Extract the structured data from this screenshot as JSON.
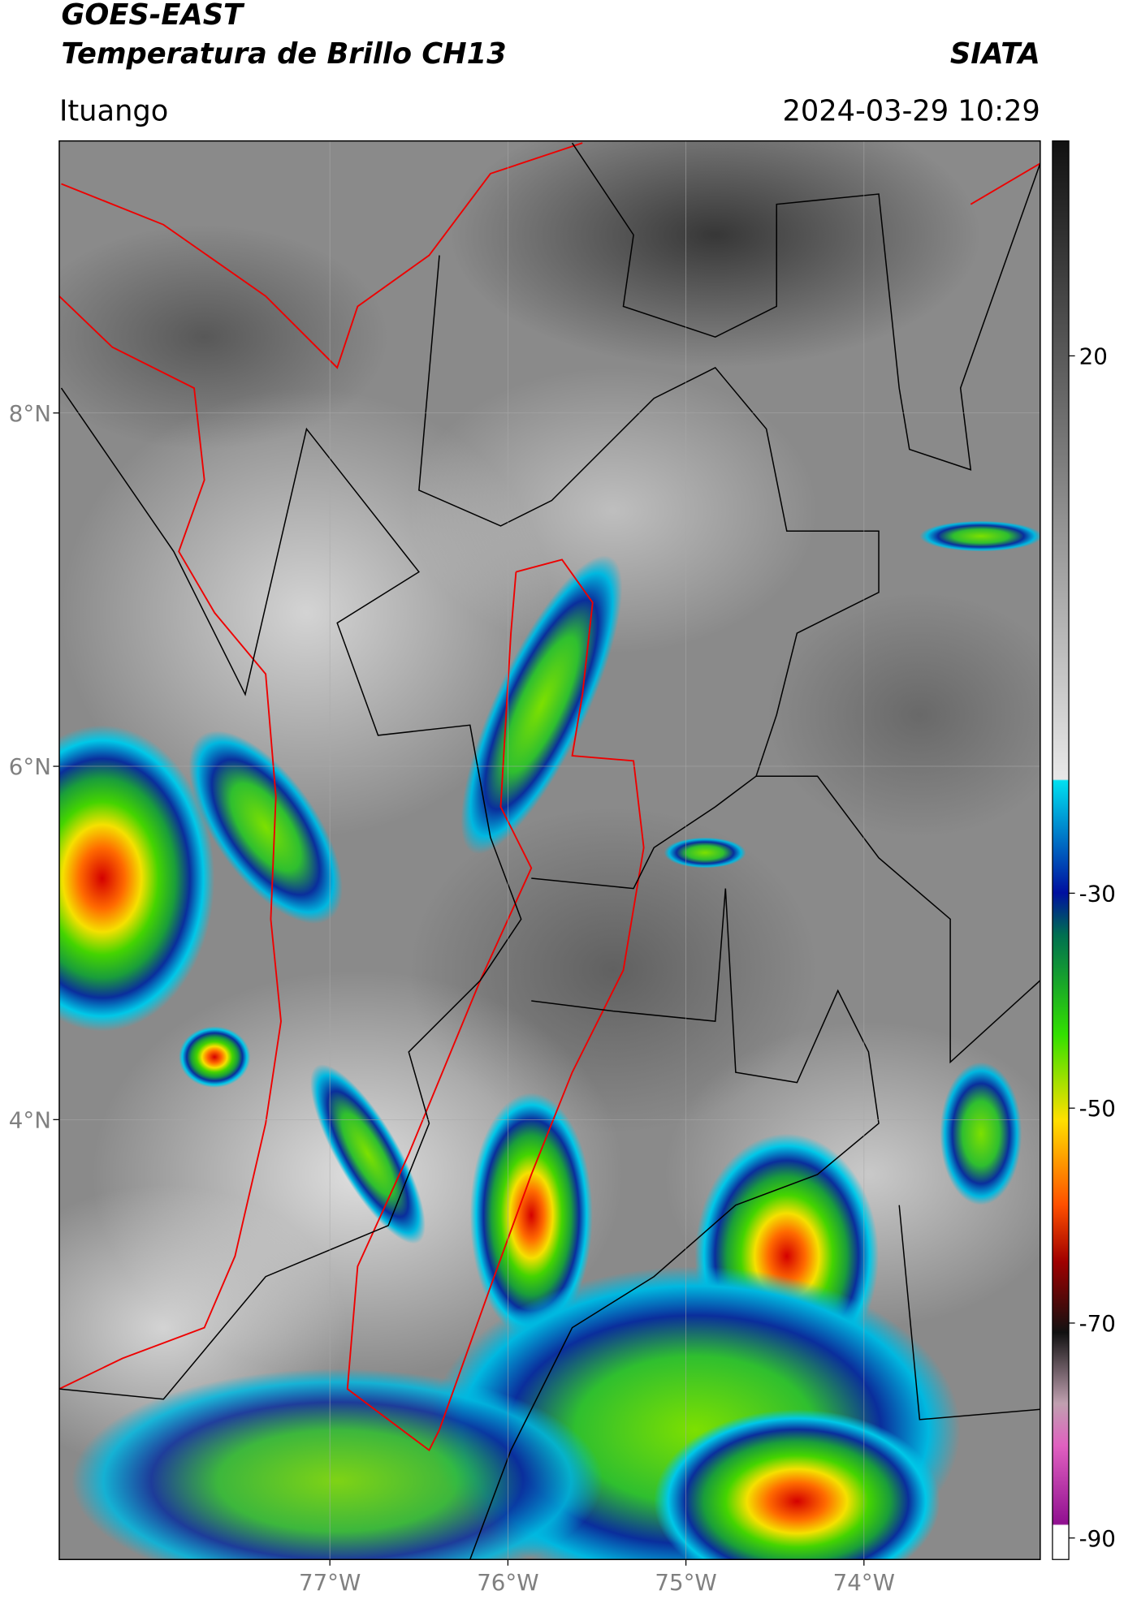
{
  "header": {
    "satellite": "GOES-EAST",
    "product": "Temperatura de Brillo CH13",
    "source": "SIATA",
    "location": "Ituango",
    "datetime": "2024-03-29 10:29"
  },
  "map": {
    "type": "map",
    "xlim": [
      -78.52,
      -73.01
    ],
    "ylim": [
      1.51,
      9.54
    ],
    "xticks": [
      {
        "value": -77,
        "label": "77°W"
      },
      {
        "value": -76,
        "label": "76°W"
      },
      {
        "value": -75,
        "label": "75°W"
      },
      {
        "value": -74,
        "label": "74°W"
      }
    ],
    "yticks": [
      {
        "value": 4,
        "label": "4°N"
      },
      {
        "value": 6,
        "label": "6°N"
      },
      {
        "value": 8,
        "label": "8°N"
      }
    ],
    "grid": true
  },
  "colorbar": {
    "clim": [
      -92,
      40
    ],
    "ticks": [
      -90,
      -70,
      -50,
      -30,
      20
    ]
  }
}
